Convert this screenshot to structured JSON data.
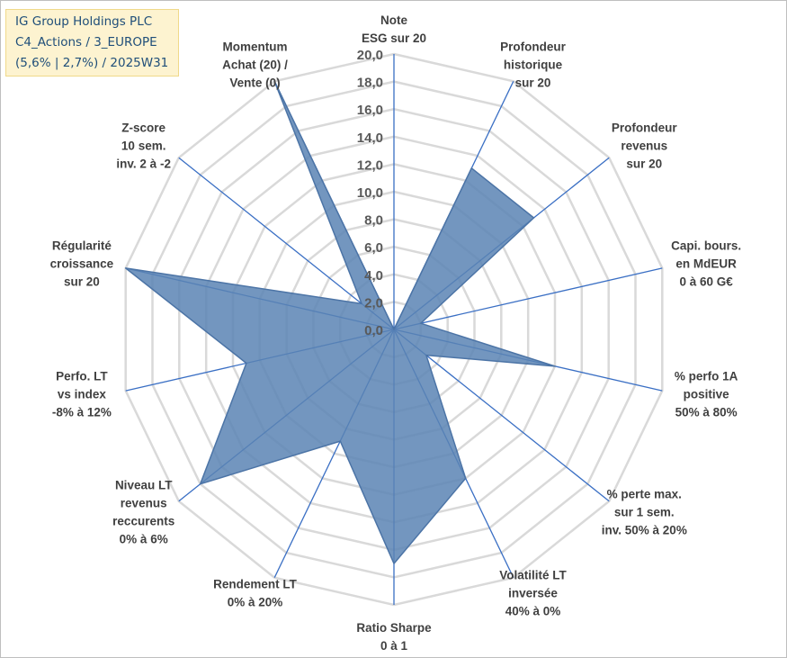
{
  "header": {
    "lines": [
      "IG Group Holdings PLC",
      "C4_Actions / 3_EUROPE",
      "(5,6% | 2,7%) / 2025W31"
    ]
  },
  "colors": {
    "fill": "#5b84b4",
    "stroke": "#4c74a6",
    "spoke": "#3a6fc4",
    "grid": "#d9d9d9",
    "title_bg": "#fdf3d0",
    "title_text": "#1f4e79"
  },
  "chart_data": {
    "type": "radar",
    "grid": true,
    "rlim": [
      0,
      20
    ],
    "tick_labels": [
      "0,0",
      "2,0",
      "4,0",
      "6,0",
      "8,0",
      "10,0",
      "12,0",
      "14,0",
      "16,0",
      "18,0",
      "20,0"
    ],
    "axes": [
      {
        "label": [
          "Note",
          "ESG sur 20"
        ],
        "value": 0
      },
      {
        "label": [
          "Profondeur",
          "historique",
          "sur 20"
        ],
        "value": 13
      },
      {
        "label": [
          "Profondeur",
          "revenus",
          "sur 20"
        ],
        "value": 13
      },
      {
        "label": [
          "Capi. bours.",
          "en MdEUR",
          "0 à 60 G€"
        ],
        "value": 2
      },
      {
        "label": [
          "% perfo 1A",
          "positive",
          "50% à 80%"
        ],
        "value": 12
      },
      {
        "label": [
          "% perte max.",
          "sur 1 sem.",
          "inv. 50% à 20%"
        ],
        "value": 3
      },
      {
        "label": [
          "Volatilité LT",
          "inversée",
          "40% à 0%"
        ],
        "value": 12
      },
      {
        "label": [
          "Ratio Sharpe",
          "0 à 1"
        ],
        "value": 17
      },
      {
        "label": [
          "Rendement LT",
          "0% à 20%"
        ],
        "value": 9
      },
      {
        "label": [
          "Niveau LT",
          "revenus",
          "reccurents",
          "0% à 6%"
        ],
        "value": 18
      },
      {
        "label": [
          "Perfo. LT",
          "vs index",
          "-8% à 12%"
        ],
        "value": 11
      },
      {
        "label": [
          "Régularité",
          "croissance",
          "sur 20"
        ],
        "value": 20
      },
      {
        "label": [
          "Z-score",
          "10 sem.",
          "inv. 2 à -2"
        ],
        "value": 3
      },
      {
        "label": [
          "Momentum",
          "Achat (20) /",
          "Vente (0)"
        ],
        "value": 20
      }
    ]
  }
}
